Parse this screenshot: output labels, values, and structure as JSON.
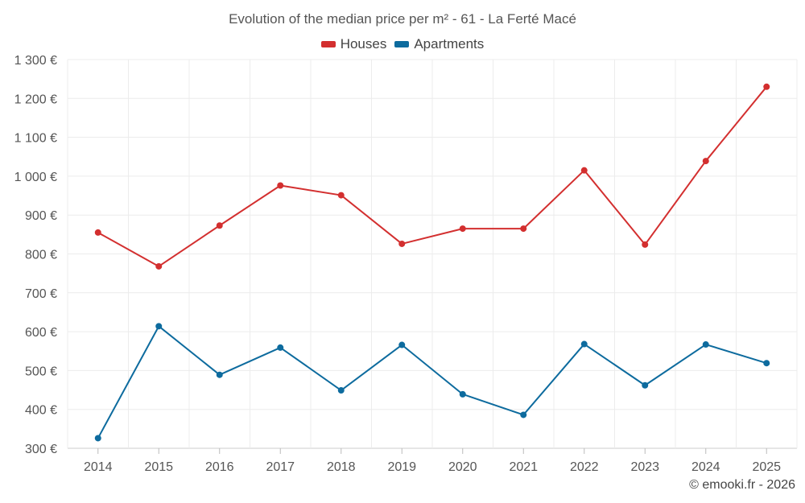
{
  "chart_data": {
    "type": "line",
    "title": "Evolution of the median price per m² - 61 - La Ferté Macé",
    "categories": [
      "2014",
      "2015",
      "2016",
      "2017",
      "2018",
      "2019",
      "2020",
      "2021",
      "2022",
      "2023",
      "2024",
      "2025"
    ],
    "series": [
      {
        "name": "Houses",
        "color": "#d32f2f",
        "values": [
          855,
          768,
          873,
          976,
          951,
          826,
          865,
          865,
          1015,
          824,
          1039,
          1230
        ]
      },
      {
        "name": "Apartments",
        "color": "#0d6b9e",
        "values": [
          326,
          614,
          489,
          559,
          449,
          566,
          439,
          386,
          568,
          462,
          567,
          519
        ]
      }
    ],
    "ylim": [
      300,
      1300
    ],
    "yticks": [
      300,
      400,
      500,
      600,
      700,
      800,
      900,
      1000,
      1100,
      1200,
      1300
    ],
    "ytick_labels": [
      "300 €",
      "400 €",
      "500 €",
      "600 €",
      "700 €",
      "800 €",
      "900 €",
      "1 000 €",
      "1 100 €",
      "1 200 €",
      "1 300 €"
    ],
    "xlabel": "",
    "ylabel": "",
    "grid": true,
    "legend_position": "top-center"
  },
  "copyright": "© emooki.fr - 2026"
}
